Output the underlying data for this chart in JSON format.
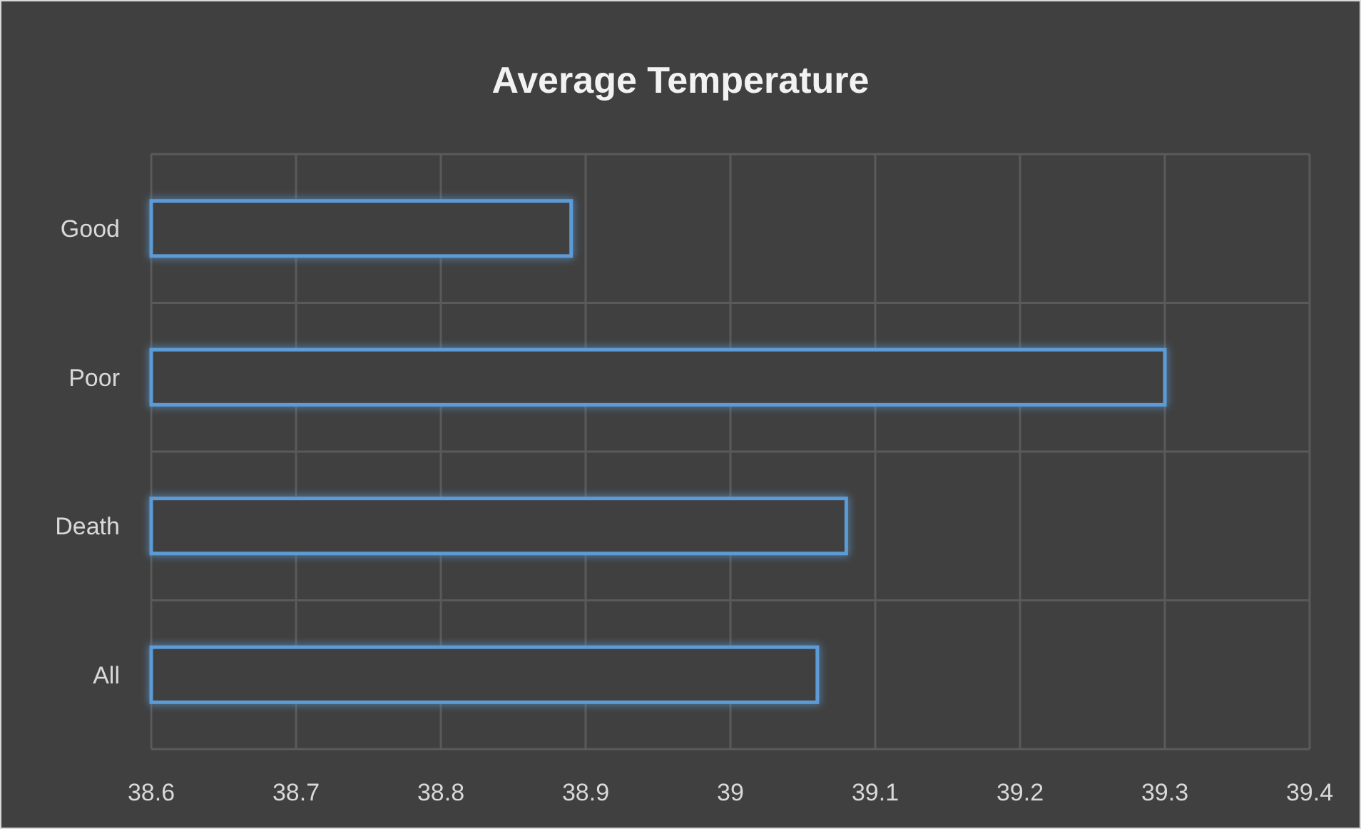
{
  "chart_data": {
    "type": "bar",
    "orientation": "horizontal",
    "title": "Average Temperature",
    "categories": [
      "Good",
      "Poor",
      "Death",
      "All"
    ],
    "values": [
      38.89,
      39.3,
      39.08,
      39.06
    ],
    "color": "#5b9bd5",
    "xlim": [
      38.6,
      39.4
    ],
    "xticks": [
      38.6,
      38.7,
      38.8,
      38.9,
      39,
      39.1,
      39.2,
      39.3,
      39.4
    ],
    "grid": true
  }
}
